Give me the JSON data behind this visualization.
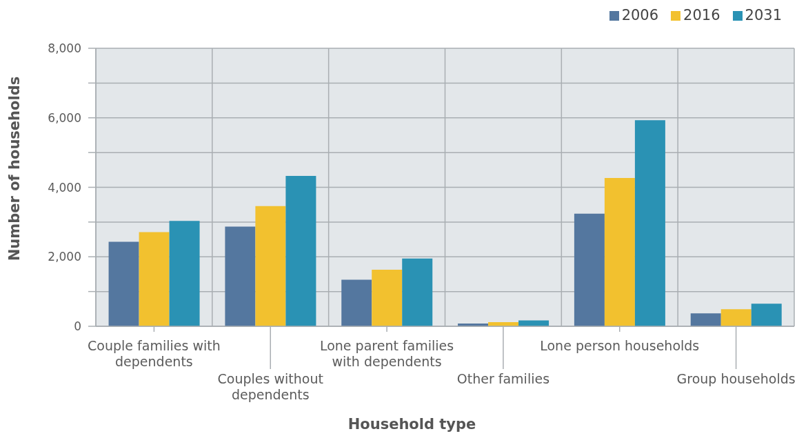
{
  "chart_data": {
    "type": "bar",
    "xlabel": "Household type",
    "ylabel": "Number of households",
    "categories": [
      "Couple families with dependents",
      "Couples without dependents",
      "Lone parent families with dependents",
      "Other families",
      "Lone person households",
      "Group households"
    ],
    "series": [
      {
        "name": "2006",
        "color": "#54779f",
        "values": [
          2430,
          2870,
          1340,
          80,
          3240,
          370
        ]
      },
      {
        "name": "2016",
        "color": "#f2c12f",
        "values": [
          2710,
          3460,
          1630,
          120,
          4270,
          490
        ]
      },
      {
        "name": "2031",
        "color": "#2a92b4",
        "values": [
          3030,
          4330,
          1950,
          170,
          5930,
          650
        ]
      }
    ],
    "ylim": [
      0,
      8000
    ],
    "yticks": [
      0,
      {
        "value": 1000,
        "label": null
      },
      {
        "value": 2000,
        "label": "2,000"
      },
      {
        "value": 3000,
        "label": null
      },
      {
        "value": 4000,
        "label": "4,000"
      },
      {
        "value": 5000,
        "label": null
      },
      {
        "value": 6000,
        "label": "6,000"
      },
      {
        "value": 7000,
        "label": null
      },
      {
        "value": 8000,
        "label": "8,000"
      }
    ],
    "grid": true,
    "legend": "top right"
  }
}
